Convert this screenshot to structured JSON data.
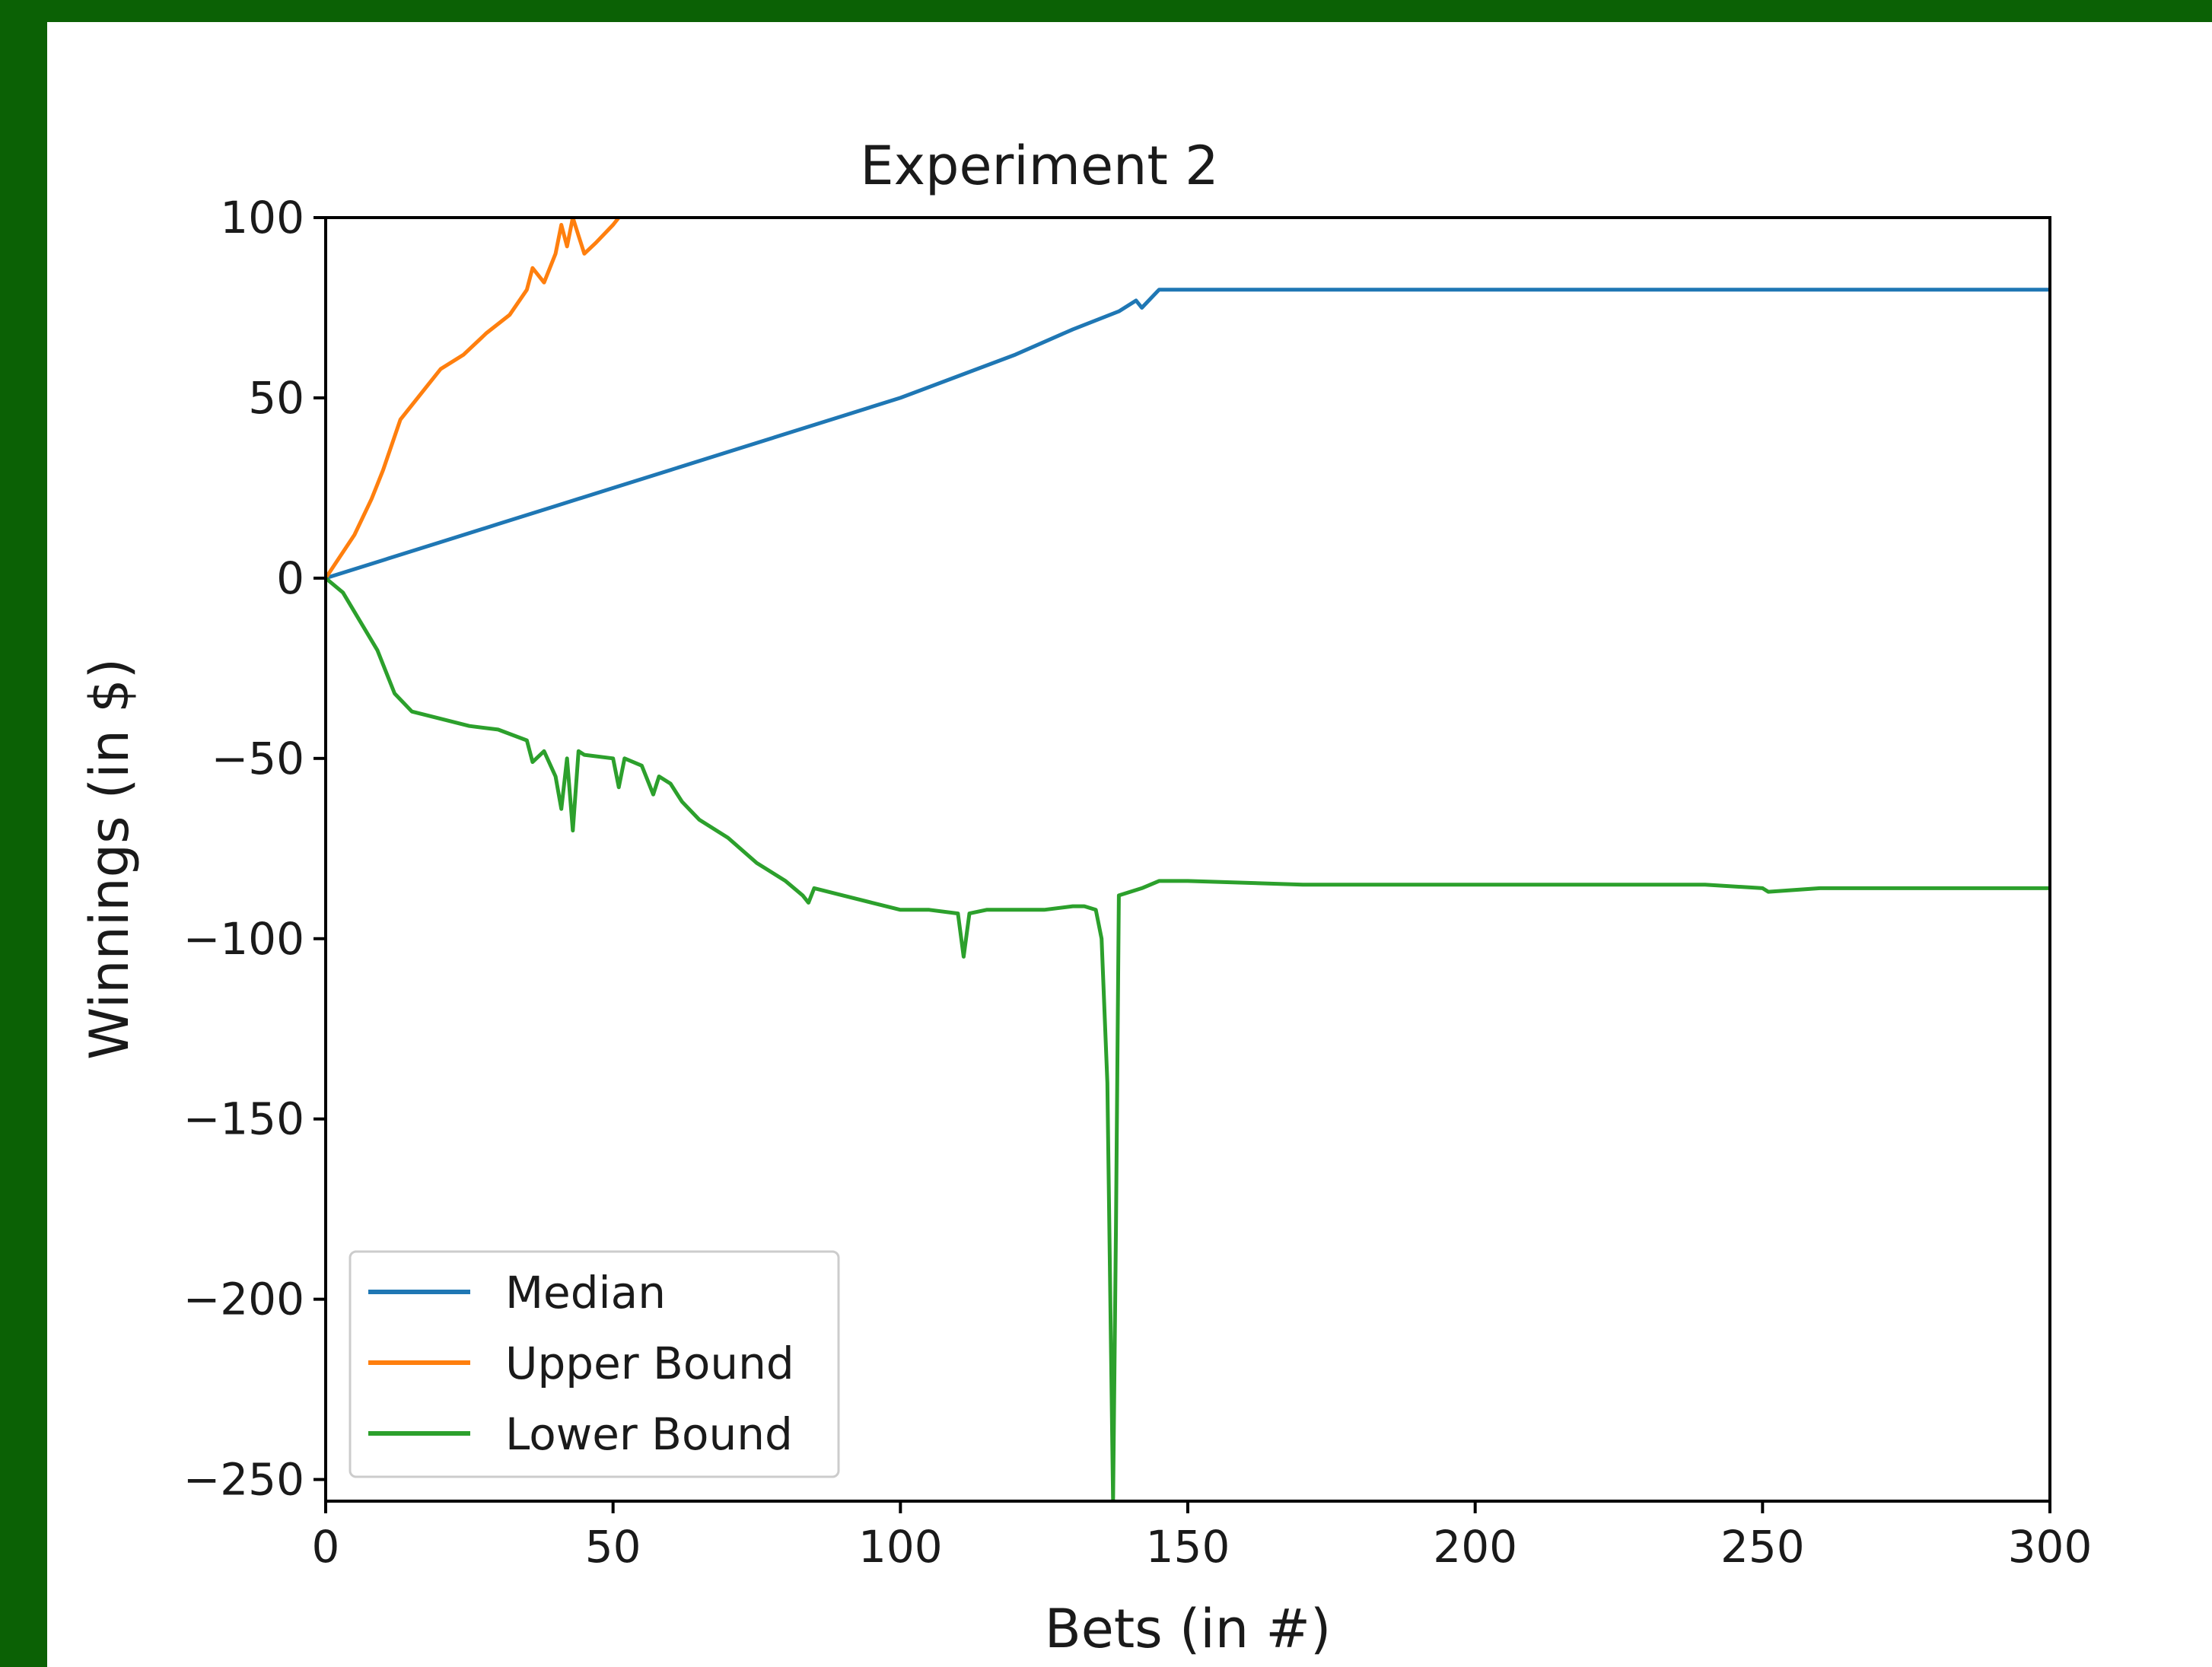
{
  "chart_data": {
    "type": "line",
    "title": "Experiment 2",
    "xlabel": "Bets (in #)",
    "ylabel": "Winnings (in $)",
    "xlim": [
      0,
      300
    ],
    "ylim": [
      -256,
      100
    ],
    "xticks": [
      0,
      50,
      100,
      150,
      200,
      250,
      300
    ],
    "yticks": [
      100,
      50,
      0,
      -50,
      -100,
      -150,
      -200,
      -250
    ],
    "legend_position": "lower-left",
    "grid": false,
    "series": [
      {
        "name": "Median",
        "color": "#1f77b4",
        "x": [
          0,
          10,
          20,
          30,
          40,
          50,
          60,
          70,
          80,
          90,
          100,
          110,
          120,
          130,
          138,
          141,
          142,
          145,
          150,
          200,
          250,
          300
        ],
        "y": [
          0,
          5,
          10,
          15,
          20,
          25,
          30,
          35,
          40,
          45,
          50,
          56,
          62,
          69,
          74,
          77,
          75,
          80,
          80,
          80,
          80,
          80
        ]
      },
      {
        "name": "Upper Bound",
        "color": "#ff7f0e",
        "x": [
          0,
          5,
          8,
          10,
          13,
          16,
          20,
          24,
          28,
          32,
          35,
          36,
          38,
          40,
          41,
          42,
          43,
          44,
          45,
          47,
          50,
          51
        ],
        "y": [
          0,
          12,
          22,
          30,
          44,
          50,
          58,
          62,
          68,
          73,
          80,
          86,
          82,
          90,
          98,
          92,
          100,
          95,
          90,
          93,
          98,
          100
        ]
      },
      {
        "name": "Lower Bound",
        "color": "#2ca02c",
        "x": [
          0,
          3,
          6,
          9,
          12,
          15,
          20,
          25,
          30,
          35,
          36,
          38,
          40,
          41,
          42,
          43,
          44,
          45,
          50,
          51,
          52,
          55,
          57,
          58,
          60,
          62,
          65,
          70,
          75,
          80,
          83,
          84,
          85,
          90,
          95,
          100,
          105,
          110,
          111,
          112,
          115,
          120,
          125,
          130,
          132,
          134,
          135,
          136,
          137,
          137.5,
          138,
          140,
          142,
          145,
          150,
          170,
          200,
          220,
          240,
          250,
          251,
          260,
          280,
          300
        ],
        "y": [
          0,
          -4,
          -12,
          -20,
          -32,
          -37,
          -39,
          -41,
          -42,
          -45,
          -51,
          -48,
          -55,
          -64,
          -50,
          -70,
          -48,
          -49,
          -50,
          -58,
          -50,
          -52,
          -60,
          -55,
          -57,
          -62,
          -67,
          -72,
          -79,
          -84,
          -88,
          -90,
          -86,
          -88,
          -90,
          -92,
          -92,
          -93,
          -105,
          -93,
          -92,
          -92,
          -92,
          -91,
          -91,
          -92,
          -100,
          -140,
          -256,
          -180,
          -88,
          -87,
          -86,
          -84,
          -84,
          -85,
          -85,
          -85,
          -85,
          -86,
          -87,
          -86,
          -86,
          -86
        ]
      }
    ]
  }
}
